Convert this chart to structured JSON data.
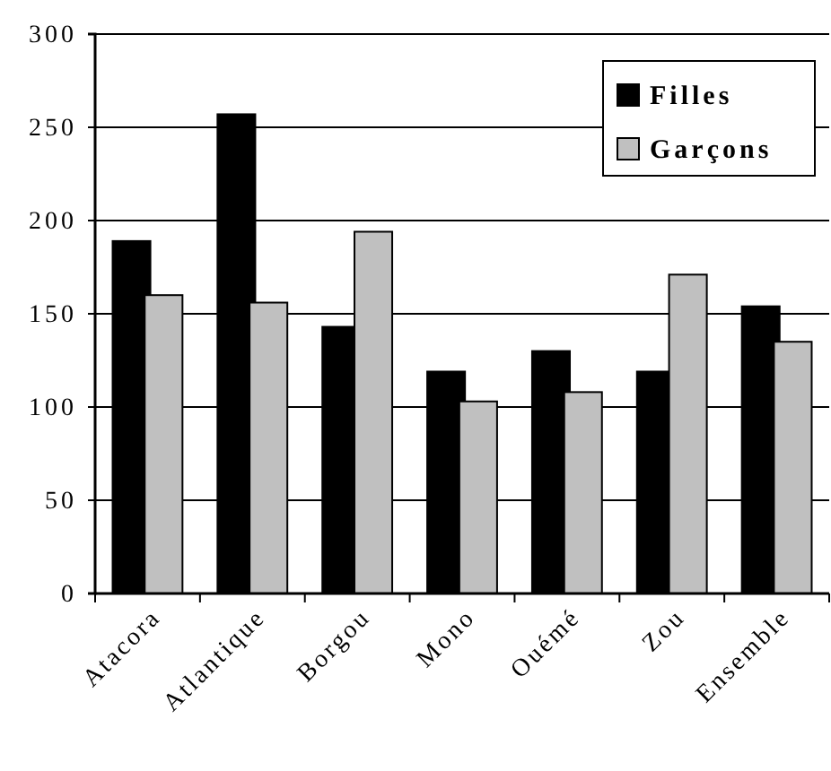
{
  "chart_data": {
    "type": "bar",
    "categories": [
      "Atacora",
      "Atlantique",
      "Borgou",
      "Mono",
      "Ouémé",
      "Zou",
      "Ensemble"
    ],
    "series": [
      {
        "name": "Filles",
        "color": "#000000",
        "values": [
          189,
          257,
          143,
          119,
          130,
          119,
          154
        ]
      },
      {
        "name": "Garçons",
        "color": "#c0c0c0",
        "values": [
          160,
          156,
          194,
          103,
          108,
          171,
          135
        ]
      }
    ],
    "ylim": [
      0,
      300
    ],
    "yticks": [
      0,
      50,
      100,
      150,
      200,
      250,
      300
    ],
    "grid": "y",
    "legend": "top right"
  }
}
